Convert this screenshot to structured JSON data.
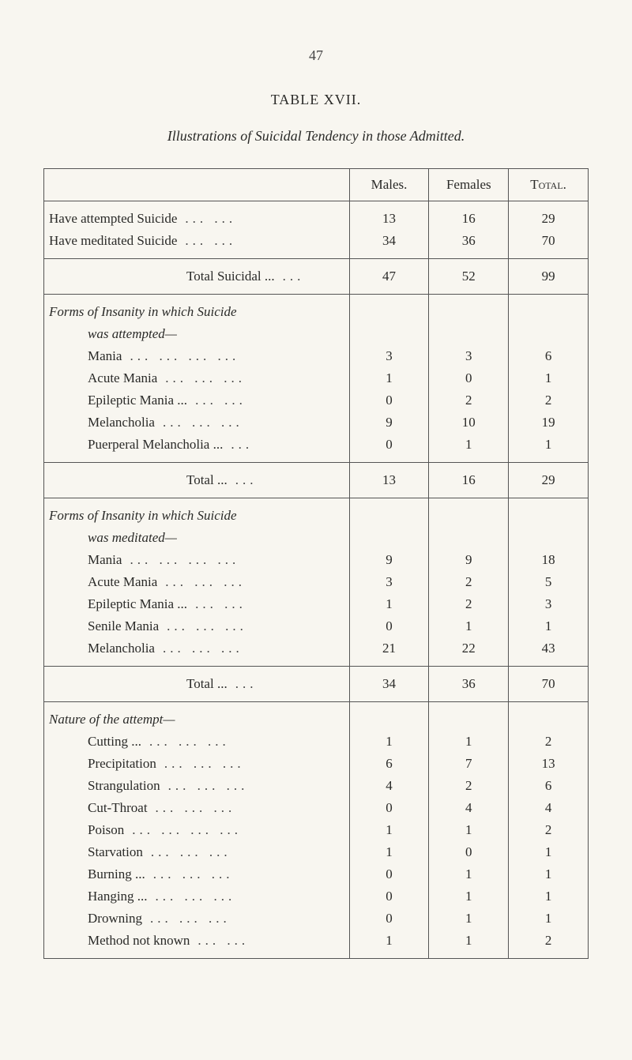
{
  "page_number": "47",
  "table_label": "TABLE XVII.",
  "caption": "Illustrations of Suicidal Tendency in those Admitted.",
  "table": {
    "columns": [
      "Males.",
      "Females",
      "Total."
    ],
    "col_widths": [
      "56%",
      "14.6%",
      "14.6%",
      "14.6%"
    ],
    "align": [
      "left",
      "center",
      "center",
      "center"
    ],
    "border_color": "#555",
    "background_color": "#f8f6f0",
    "text_color": "#2a2a28",
    "font": "Times New Roman",
    "fontsize_body": 17,
    "fontsize_header": 17,
    "sections": [
      {
        "rows": [
          {
            "label": "Have attempted Suicide",
            "indent": 0,
            "dots": "...   ...",
            "males": "13",
            "females": "16",
            "total": "29"
          },
          {
            "label": "Have meditated Suicide",
            "indent": 0,
            "dots": "...   ...",
            "males": "34",
            "females": "36",
            "total": "70"
          }
        ]
      },
      {
        "rows": [
          {
            "label": "Total Suicidal ...",
            "indent": "total",
            "dots": "...",
            "males": "47",
            "females": "52",
            "total": "99"
          }
        ]
      },
      {
        "heading_italic": "Forms of Insanity in which Suicide",
        "heading_line2": "was attempted—",
        "rows": [
          {
            "label": "Mania",
            "indent": 1,
            "dots": "...   ...   ...   ...",
            "males": "3",
            "females": "3",
            "total": "6"
          },
          {
            "label": "Acute Mania",
            "indent": 1,
            "dots": "...   ...   ...",
            "males": "1",
            "females": "0",
            "total": "1"
          },
          {
            "label": "Epileptic Mania ...",
            "indent": 1,
            "dots": "...   ...",
            "males": "0",
            "females": "2",
            "total": "2"
          },
          {
            "label": "Melancholia",
            "indent": 1,
            "dots": "...   ...   ...",
            "males": "9",
            "females": "10",
            "total": "19"
          },
          {
            "label": "Puerperal Melancholia ...",
            "indent": 1,
            "dots": "...",
            "males": "0",
            "females": "1",
            "total": "1"
          }
        ]
      },
      {
        "rows": [
          {
            "label": "Total ...",
            "indent": "total",
            "dots": "...",
            "males": "13",
            "females": "16",
            "total": "29"
          }
        ]
      },
      {
        "heading_italic": "Forms of Insanity in which Suicide",
        "heading_line2": "was meditated—",
        "rows": [
          {
            "label": "Mania",
            "indent": 1,
            "dots": "...   ...   ...   ...",
            "males": "9",
            "females": "9",
            "total": "18"
          },
          {
            "label": "Acute Mania",
            "indent": 1,
            "dots": "...   ...   ...",
            "males": "3",
            "females": "2",
            "total": "5"
          },
          {
            "label": "Epileptic Mania ...",
            "indent": 1,
            "dots": "...   ...",
            "males": "1",
            "females": "2",
            "total": "3"
          },
          {
            "label": "Senile Mania",
            "indent": 1,
            "dots": "...   ...   ...",
            "males": "0",
            "females": "1",
            "total": "1"
          },
          {
            "label": "Melancholia",
            "indent": 1,
            "dots": "...   ...   ...",
            "males": "21",
            "females": "22",
            "total": "43"
          }
        ]
      },
      {
        "rows": [
          {
            "label": "Total ...",
            "indent": "total",
            "dots": "...",
            "males": "34",
            "females": "36",
            "total": "70"
          }
        ]
      },
      {
        "heading_italic": "Nature of the attempt—",
        "rows": [
          {
            "label": "Cutting ...",
            "indent": 1,
            "dots": "...   ...   ...",
            "males": "1",
            "females": "1",
            "total": "2"
          },
          {
            "label": "Precipitation",
            "indent": 1,
            "dots": "...   ...   ...",
            "males": "6",
            "females": "7",
            "total": "13"
          },
          {
            "label": "Strangulation",
            "indent": 1,
            "dots": "...   ...   ...",
            "males": "4",
            "females": "2",
            "total": "6"
          },
          {
            "label": "Cut-Throat",
            "indent": 1,
            "dots": "...   ...   ...",
            "males": "0",
            "females": "4",
            "total": "4"
          },
          {
            "label": "Poison",
            "indent": 1,
            "dots": "...   ...   ...   ...",
            "males": "1",
            "females": "1",
            "total": "2"
          },
          {
            "label": "Starvation",
            "indent": 1,
            "dots": "...   ...   ...",
            "males": "1",
            "females": "0",
            "total": "1"
          },
          {
            "label": "Burning ...",
            "indent": 1,
            "dots": "...   ...   ...",
            "males": "0",
            "females": "1",
            "total": "1"
          },
          {
            "label": "Hanging ...",
            "indent": 1,
            "dots": "...   ...   ...",
            "males": "0",
            "females": "1",
            "total": "1"
          },
          {
            "label": "Drowning",
            "indent": 1,
            "dots": "...   ...   ...",
            "males": "0",
            "females": "1",
            "total": "1"
          },
          {
            "label": "Method not known",
            "indent": 1,
            "dots": "...   ...",
            "males": "1",
            "females": "1",
            "total": "2"
          }
        ]
      }
    ]
  }
}
